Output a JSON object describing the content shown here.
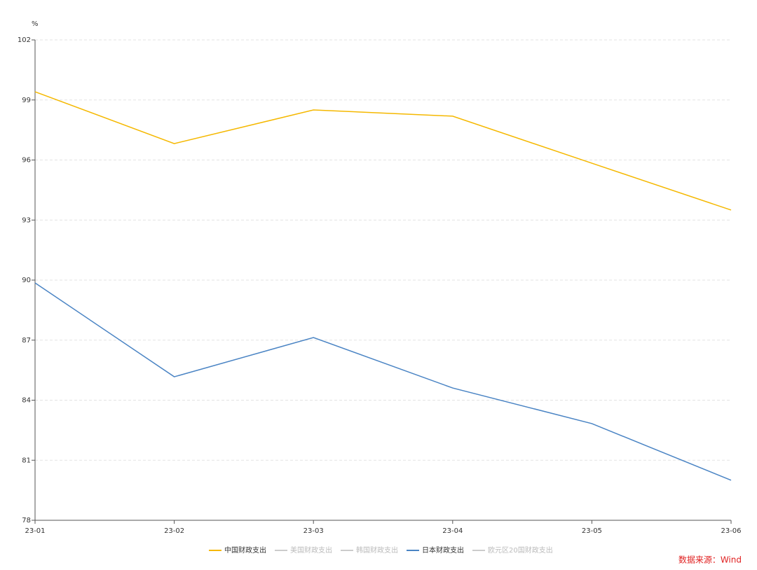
{
  "chart_data": {
    "type": "line",
    "y_unit": "%",
    "source": "数据来源：Wind",
    "categories": [
      "23-01",
      "23-02",
      "23-03",
      "23-04",
      "23-05",
      "23-06"
    ],
    "series": [
      {
        "name": "中国财政支出",
        "color": "#f5b800",
        "visible": true,
        "values": [
          99.41,
          96.82,
          98.5,
          98.19,
          95.84,
          93.5
        ]
      },
      {
        "name": "美国财政支出",
        "color": "#cccccc",
        "visible": false,
        "values": [
          null,
          null,
          null,
          null,
          null,
          null
        ]
      },
      {
        "name": "韩国财政支出",
        "color": "#cccccc",
        "visible": false,
        "values": [
          null,
          null,
          null,
          null,
          null,
          null
        ]
      },
      {
        "name": "日本财政支出",
        "color": "#4a84c4",
        "visible": true,
        "values": [
          89.86,
          85.17,
          87.13,
          84.61,
          82.83,
          80.0
        ]
      },
      {
        "name": "欧元区20国财政支出",
        "color": "#cccccc",
        "visible": false,
        "values": [
          null,
          null,
          null,
          null,
          null,
          null
        ]
      }
    ],
    "ylim": [
      78,
      102
    ],
    "yticks": [
      78,
      81,
      84,
      87,
      90,
      93,
      96,
      99,
      102
    ],
    "grid": true
  }
}
